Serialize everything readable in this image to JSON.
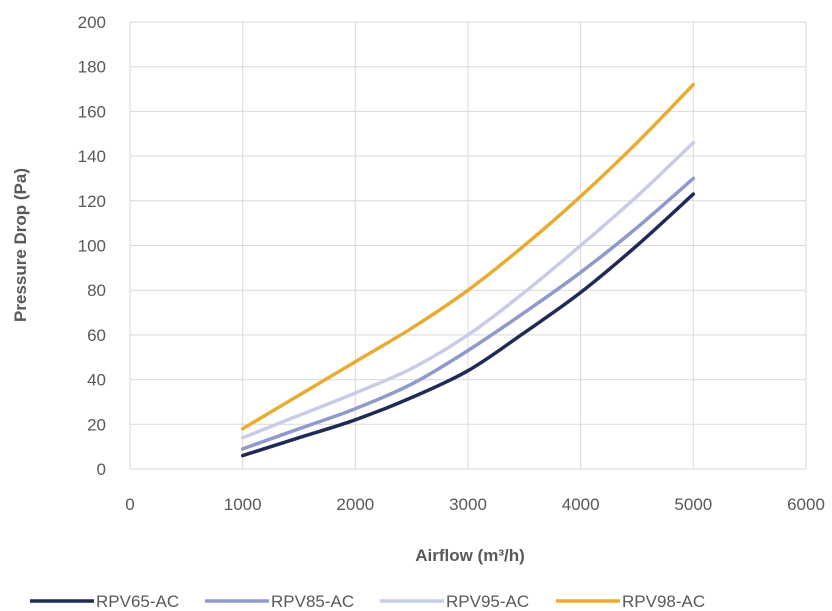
{
  "chart_data": {
    "type": "line",
    "xlabel": "Airflow (m³/h)",
    "ylabel": "Pressure Drop (Pa)",
    "xlim": [
      0,
      6000
    ],
    "ylim": [
      0,
      200
    ],
    "x_ticks": [
      0,
      1000,
      2000,
      3000,
      4000,
      5000,
      6000
    ],
    "y_ticks": [
      0,
      20,
      40,
      60,
      80,
      100,
      120,
      140,
      160,
      180,
      200
    ],
    "grid": true,
    "legend_position": "bottom",
    "x": [
      1000,
      1500,
      2000,
      2500,
      3000,
      3500,
      4000,
      4500,
      5000
    ],
    "series": [
      {
        "name": "RPV65-AC",
        "color": "#1f2a57",
        "values": [
          6,
          14,
          22,
          32,
          44,
          61,
          79,
          100,
          123
        ]
      },
      {
        "name": "RPV85-AC",
        "color": "#8f9acb",
        "values": [
          9,
          18,
          27,
          38,
          53,
          70,
          88,
          108,
          130
        ]
      },
      {
        "name": "RPV95-AC",
        "color": "#c8cce6",
        "values": [
          14,
          24,
          34,
          45,
          60,
          79,
          100,
          122,
          146
        ]
      },
      {
        "name": "RPV98-AC",
        "color": "#e9ac31",
        "values": [
          18,
          33,
          48,
          63,
          80,
          100,
          122,
          146,
          172
        ]
      }
    ]
  }
}
